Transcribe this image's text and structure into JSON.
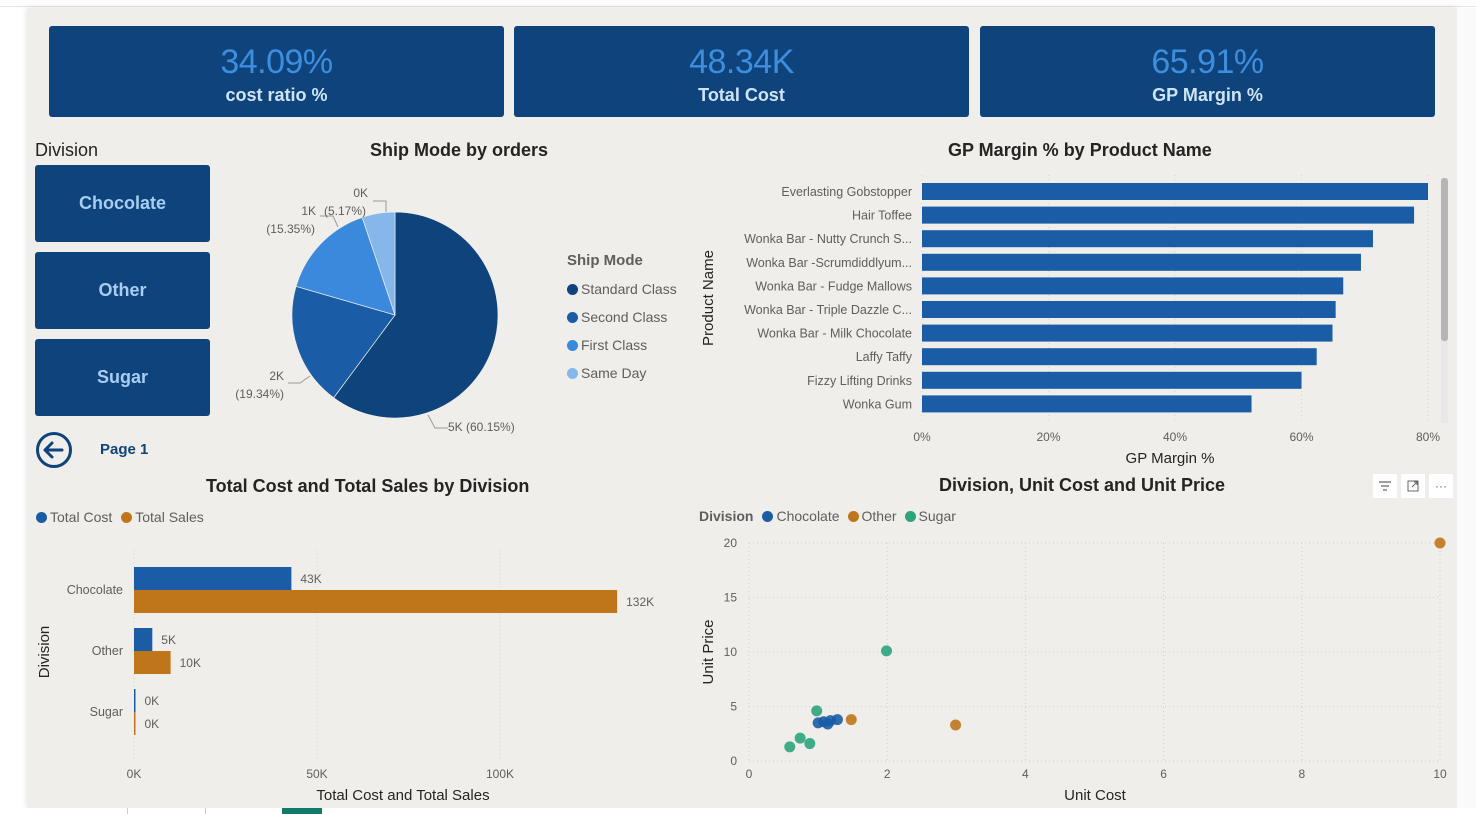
{
  "kpis": [
    {
      "value": "34.09%",
      "label": "cost ratio %"
    },
    {
      "value": "48.34K",
      "label": "Total Cost"
    },
    {
      "value": "65.91%",
      "label": "GP Margin %"
    }
  ],
  "slicer": {
    "title": "Division",
    "options": [
      "Chocolate",
      "Other",
      "Sugar"
    ]
  },
  "navigation": {
    "back_icon": "arrow-left-circle-icon",
    "page_label": "Page 1"
  },
  "visual_toolbar": {
    "filter_icon": "filter-icon",
    "focus_icon": "focus-mode-icon",
    "more_icon": "more-options-icon",
    "more_label": "···"
  },
  "colors": {
    "dark_navy": "#0e437c",
    "standard_class": "#0e437c",
    "second_class": "#1a5da6",
    "first_class": "#3a89dc",
    "same_day": "#86b7ea",
    "bar_blue": "#1a5da6",
    "bar_orange": "#bf7619",
    "sugar_green": "#2aa57c"
  },
  "chart_data": [
    {
      "type": "pie",
      "title": "Ship Mode by orders",
      "legend_title": "Ship Mode",
      "legend_position": "right",
      "slices": [
        {
          "name": "Standard Class",
          "value_label": "5K",
          "percent": 60.15,
          "label": "5K (60.15%)"
        },
        {
          "name": "Second Class",
          "value_label": "2K",
          "percent": 19.34,
          "label": "2K",
          "label2": "(19.34%)"
        },
        {
          "name": "First Class",
          "value_label": "1K",
          "percent": 15.35,
          "label": "1K",
          "label2": "(15.35%)"
        },
        {
          "name": "Same Day",
          "value_label": "0K",
          "percent": 5.17,
          "label": "0K",
          "label2": "(5.17%)"
        }
      ]
    },
    {
      "type": "bar",
      "orientation": "horizontal",
      "title": "GP Margin % by Product Name",
      "xlabel": "GP Margin %",
      "ylabel": "Product Name",
      "xlim": [
        0,
        80
      ],
      "xticks": [
        "0%",
        "20%",
        "40%",
        "60%",
        "80%"
      ],
      "grid": true,
      "categories": [
        "Everlasting Gobstopper",
        "Hair Toffee",
        "Wonka Bar - Nutty Crunch S...",
        "Wonka Bar -Scrumdiddlyum...",
        "Wonka Bar - Fudge Mallows",
        "Wonka Bar - Triple Dazzle C...",
        "Wonka Bar - Milk Chocolate",
        "Laffy Taffy",
        "Fizzy Lifting Drinks",
        "Wonka Gum"
      ],
      "values": [
        80.0,
        77.8,
        71.3,
        69.4,
        66.6,
        65.4,
        64.9,
        62.4,
        60.0,
        52.1
      ]
    },
    {
      "type": "bar",
      "orientation": "horizontal",
      "title": "Total Cost and Total Sales by Division",
      "xlabel": "Total Cost and Total Sales",
      "ylabel": "Division",
      "xlim": [
        0,
        150000
      ],
      "xticks": [
        "0K",
        "50K",
        "100K"
      ],
      "legend_position": "top-left",
      "categories": [
        "Chocolate",
        "Other",
        "Sugar"
      ],
      "series": [
        {
          "name": "Total Cost",
          "values": [
            43000,
            5000,
            200
          ],
          "labels": [
            "43K",
            "5K",
            "0K"
          ]
        },
        {
          "name": "Total Sales",
          "values": [
            132000,
            10000,
            300
          ],
          "labels": [
            "132K",
            "10K",
            "0K"
          ]
        }
      ]
    },
    {
      "type": "scatter",
      "title": "Division, Unit Cost and Unit Price",
      "xlabel": "Unit Cost",
      "ylabel": "Unit Price",
      "xlim": [
        0,
        10
      ],
      "ylim": [
        0,
        20
      ],
      "xticks": [
        "0",
        "2",
        "4",
        "6",
        "8",
        "10"
      ],
      "yticks": [
        "0",
        "5",
        "10",
        "15",
        "20"
      ],
      "legend_title": "Division",
      "legend_position": "top-left",
      "series": [
        {
          "name": "Chocolate",
          "points": [
            [
              1.0,
              3.5
            ],
            [
              1.08,
              3.6
            ],
            [
              1.14,
              3.4
            ],
            [
              1.18,
              3.7
            ],
            [
              1.28,
              3.8
            ]
          ]
        },
        {
          "name": "Other",
          "points": [
            [
              1.48,
              3.8
            ],
            [
              2.99,
              3.3
            ],
            [
              10.0,
              20.0
            ]
          ]
        },
        {
          "name": "Sugar",
          "points": [
            [
              0.98,
              4.6
            ],
            [
              1.99,
              10.1
            ],
            [
              0.74,
              2.1
            ],
            [
              0.88,
              1.6
            ],
            [
              0.59,
              1.3
            ]
          ]
        }
      ]
    }
  ]
}
